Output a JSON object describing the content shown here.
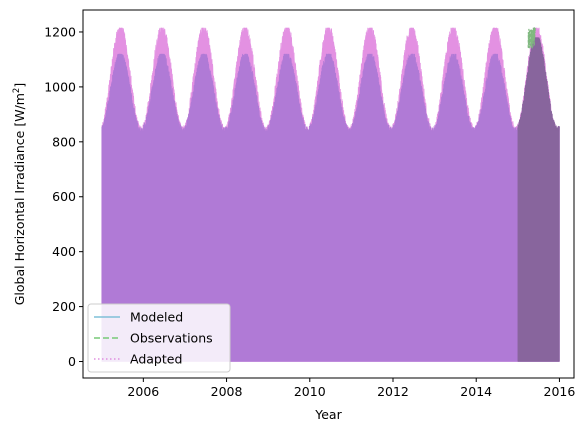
{
  "chart_data": {
    "type": "area",
    "xlabel": "Year",
    "ylabel_main": "Global Horizontal Irradiance [W/m",
    "ylabel_sup": "2",
    "ylabel_end": "]",
    "xlim": [
      2004.55,
      2016.35
    ],
    "ylim": [
      -60,
      1280
    ],
    "x_ticks": [
      2006,
      2008,
      2010,
      2012,
      2014,
      2016
    ],
    "x_tick_labels": [
      "2006",
      "2008",
      "2010",
      "2012",
      "2014",
      "2016"
    ],
    "y_ticks": [
      0,
      200,
      400,
      600,
      800,
      1000,
      1200
    ],
    "y_tick_labels": [
      "0",
      "200",
      "400",
      "600",
      "800",
      "1000",
      "1200"
    ],
    "x_range": [
      2005.0,
      2016.0
    ],
    "daily_peak_envelope": {
      "winter_min": 840,
      "summer_max": 1215,
      "peak_month_fraction": 0.45
    },
    "series": [
      {
        "name": "Modeled",
        "line_style": "solid",
        "color": "#7fc0d8",
        "x_range": [
          2005.0,
          2016.0
        ],
        "peak_min": 840,
        "peak_max": 1120
      },
      {
        "name": "Observations",
        "line_style": "dashed",
        "color": "#77c977",
        "x_range": [
          2015.0,
          2016.0
        ],
        "peak_min": 840,
        "peak_max": 1215
      },
      {
        "name": "Adapted",
        "line_style": "dotted",
        "color": "#e08fe0",
        "x_range": [
          2005.0,
          2016.0
        ],
        "peak_min": 840,
        "peak_max": 1215
      }
    ],
    "colors": {
      "modeled_fill": "#b07ad6",
      "adapted_fill": "#e391e2",
      "overlap_fill": "#88659d",
      "observations_peak": "#7fb87f"
    },
    "legend": {
      "placement": "lower-left",
      "entries": [
        "Modeled",
        "Observations",
        "Adapted"
      ]
    },
    "grid": false
  }
}
